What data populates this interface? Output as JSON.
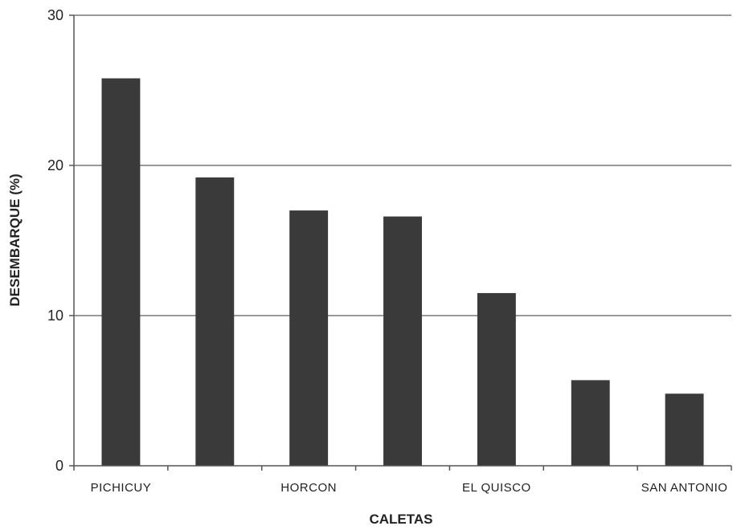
{
  "chart_data": {
    "type": "bar",
    "title": "",
    "xlabel": "CALETAS",
    "ylabel": "DESEMBARQUE (%)",
    "ylim": [
      0,
      30
    ],
    "yticks": [
      0,
      10,
      20,
      30
    ],
    "grid": "horizontal major gridlines",
    "legend": "none",
    "categories": [
      "PICHICUY",
      "",
      "HORCON",
      "",
      "EL QUISCO",
      "",
      "SAN ANTONIO"
    ],
    "values": [
      25.8,
      19.2,
      17.0,
      16.6,
      11.5,
      5.7,
      4.8
    ],
    "bar_color": "#3a3a3a",
    "grid_color": "#333333",
    "axis_color": "#555555"
  }
}
